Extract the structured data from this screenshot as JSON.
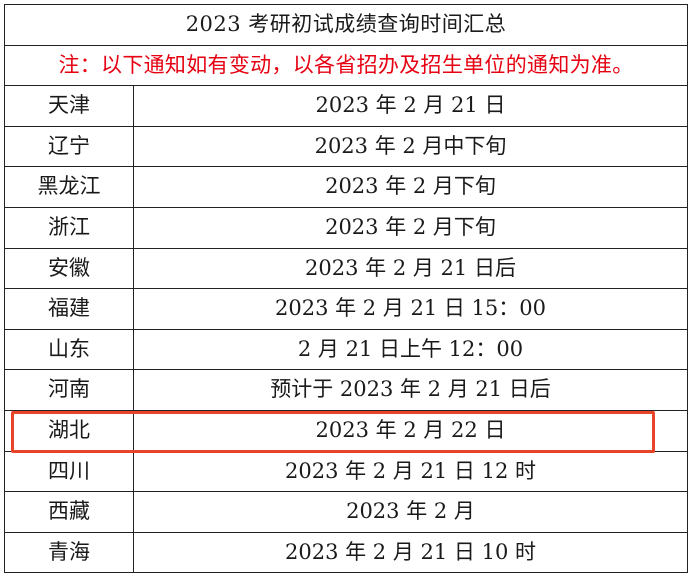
{
  "title": "2023 考研初试成绩查询时间汇总",
  "notice": "注：以下通知如有变动，以各省招办及招生单位的通知为准。",
  "highlight_color": "#e8442a",
  "notice_color": "#e60012",
  "rows": [
    {
      "province": "天津",
      "date": "2023 年 2 月 21 日"
    },
    {
      "province": "辽宁",
      "date": "2023 年 2 月中下旬"
    },
    {
      "province": "黑龙江",
      "date": "2023 年 2 月下旬"
    },
    {
      "province": "浙江",
      "date": "2023 年 2 月下旬"
    },
    {
      "province": "安徽",
      "date": "2023 年 2 月 21 日后"
    },
    {
      "province": "福建",
      "date": "2023 年 2 月 21 日 15：00"
    },
    {
      "province": "山东",
      "date": "2 月 21 日上午 12：00"
    },
    {
      "province": "河南",
      "date": "预计于 2023 年 2 月 21 日后"
    },
    {
      "province": "湖北",
      "date": "2023 年 2 月 22 日"
    },
    {
      "province": "四川",
      "date": "2023 年 2 月 21 日 12 时"
    },
    {
      "province": "西藏",
      "date": "2023 年 2 月"
    },
    {
      "province": "青海",
      "date": "2023 年 2 月 21 日 10 时"
    }
  ]
}
